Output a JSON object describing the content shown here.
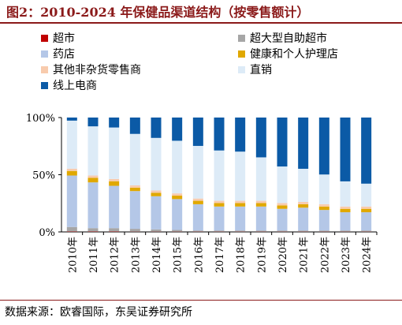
{
  "figure": {
    "title": "图2：2010-2024 年保健品渠道结构（按零售额计）",
    "source": "数据来源：欧睿国际，东吴证券研究所"
  },
  "colors": {
    "超市": "#c00000",
    "超大型自助超市": "#a6a6a6",
    "药店": "#b4c7e7",
    "健康和个人护理店": "#e0a800",
    "其他非杂货零售商": "#f8cbad",
    "直销": "#ddebf7",
    "线上电商": "#0b5aa6"
  },
  "chart_data": {
    "type": "bar",
    "stacked": true,
    "categories": [
      "2010年",
      "2011年",
      "2012年",
      "2013年",
      "2014年",
      "2015年",
      "2016年",
      "2017年",
      "2018年",
      "2019年",
      "2020年",
      "2021年",
      "2022年",
      "2023年",
      "2024年"
    ],
    "series": [
      {
        "name": "超市",
        "values": [
          0.3,
          0.3,
          0.3,
          0.2,
          0.2,
          0.2,
          0.2,
          0.2,
          0.2,
          0.2,
          0.2,
          0.2,
          0.2,
          0.2,
          0.2
        ]
      },
      {
        "name": "超大型自助超市",
        "values": [
          4,
          3,
          3,
          2.5,
          2,
          1.5,
          1,
          1,
          1,
          1,
          1,
          1,
          1,
          1,
          1
        ]
      },
      {
        "name": "药店",
        "values": [
          45,
          40,
          37,
          33,
          29,
          27,
          23,
          21,
          21,
          21,
          19,
          20,
          18,
          16,
          16
        ]
      },
      {
        "name": "健康和个人护理店",
        "values": [
          4,
          4,
          4,
          3,
          3,
          3,
          3,
          3,
          3,
          3,
          3,
          3,
          3,
          3,
          3
        ]
      },
      {
        "name": "其他非杂货零售商",
        "values": [
          2,
          2,
          2,
          2,
          2,
          2,
          2,
          2,
          2,
          2,
          2,
          2,
          2,
          2,
          2
        ]
      },
      {
        "name": "直销",
        "values": [
          42,
          43,
          45,
          45,
          46,
          46,
          46,
          44,
          43,
          38,
          32,
          29,
          26,
          22,
          20
        ]
      },
      {
        "name": "线上电商",
        "values": [
          2.7,
          7.7,
          8.7,
          14.3,
          17.8,
          20.3,
          24.8,
          28.8,
          29.8,
          34.8,
          42.8,
          44.8,
          49.8,
          55.8,
          57.8
        ]
      }
    ],
    "legend_order": [
      "超市",
      "超大型自助超市",
      "药店",
      "健康和个人护理店",
      "其他非杂货零售商",
      "直销",
      "线上电商"
    ],
    "y_ticks": [
      "0%",
      "50%",
      "100%"
    ],
    "ylim": [
      0,
      100
    ],
    "legend_position": "top",
    "grid": false
  }
}
